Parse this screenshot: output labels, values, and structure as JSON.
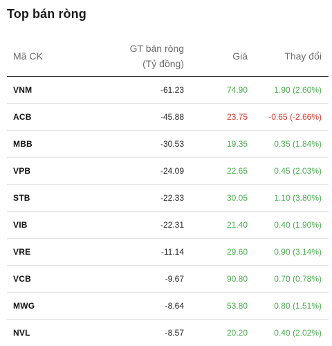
{
  "widget": {
    "title": "Top bán ròng"
  },
  "table": {
    "headers": {
      "code": "Mã CK",
      "value_line1": "GT bán ròng",
      "value_line2": "(Tỷ đồng)",
      "price": "Giá",
      "change": "Thay đổi"
    },
    "rows": [
      {
        "code": "VNM",
        "value": "-61.23",
        "price": "74.90",
        "change": "1.90 (2.60%)",
        "trend": "up"
      },
      {
        "code": "ACB",
        "value": "-45.88",
        "price": "23.75",
        "change": "-0.65 (-2.66%)",
        "trend": "down"
      },
      {
        "code": "MBB",
        "value": "-30.53",
        "price": "19.35",
        "change": "0.35 (1.84%)",
        "trend": "up"
      },
      {
        "code": "VPB",
        "value": "-24.09",
        "price": "22.65",
        "change": "0.45 (2.03%)",
        "trend": "up"
      },
      {
        "code": "STB",
        "value": "-22.33",
        "price": "30.05",
        "change": "1.10 (3.80%)",
        "trend": "up"
      },
      {
        "code": "VIB",
        "value": "-22.31",
        "price": "21.40",
        "change": "0.40 (1.90%)",
        "trend": "up"
      },
      {
        "code": "VRE",
        "value": "-11.14",
        "price": "29.60",
        "change": "0.90 (3.14%)",
        "trend": "up"
      },
      {
        "code": "VCB",
        "value": "-9.67",
        "price": "90.80",
        "change": "0.70 (0.78%)",
        "trend": "up"
      },
      {
        "code": "MWG",
        "value": "-8.64",
        "price": "53.80",
        "change": "0.80 (1.51%)",
        "trend": "up"
      },
      {
        "code": "NVL",
        "value": "-8.57",
        "price": "20.20",
        "change": "0.40 (2.02%)",
        "trend": "up"
      }
    ]
  },
  "colors": {
    "up": "#4caf50",
    "down": "#e0312b",
    "header_text": "#6b6b6b"
  }
}
